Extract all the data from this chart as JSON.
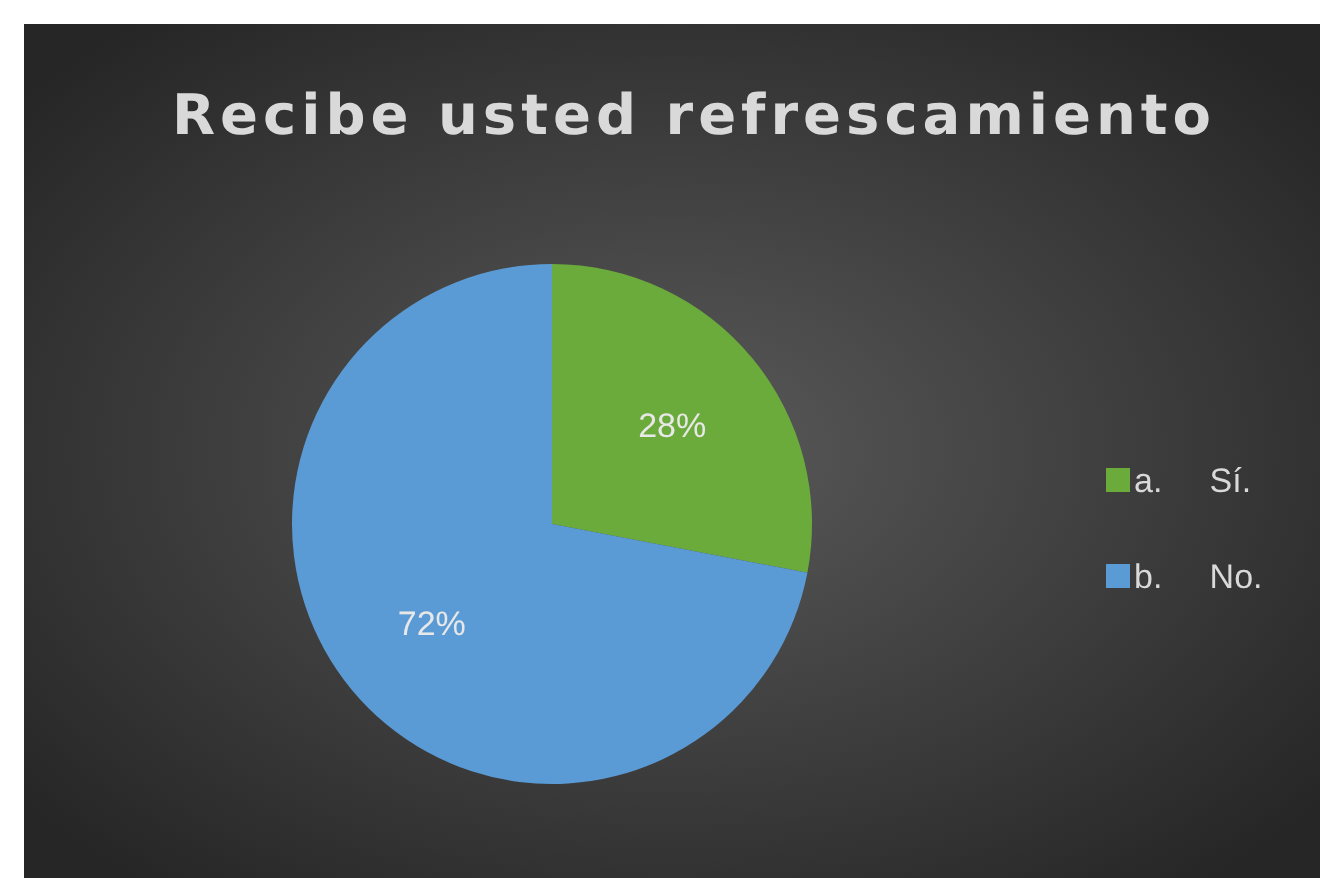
{
  "chart_data": {
    "type": "pie",
    "title": "Recibe usted refrescamiento",
    "categories": [
      "a.     Sí.",
      "b.     No."
    ],
    "values": [
      28,
      72
    ],
    "colors": [
      "#6aab3c",
      "#5b9bd5"
    ],
    "value_labels": [
      "28%",
      "72%"
    ],
    "legend": "right"
  }
}
